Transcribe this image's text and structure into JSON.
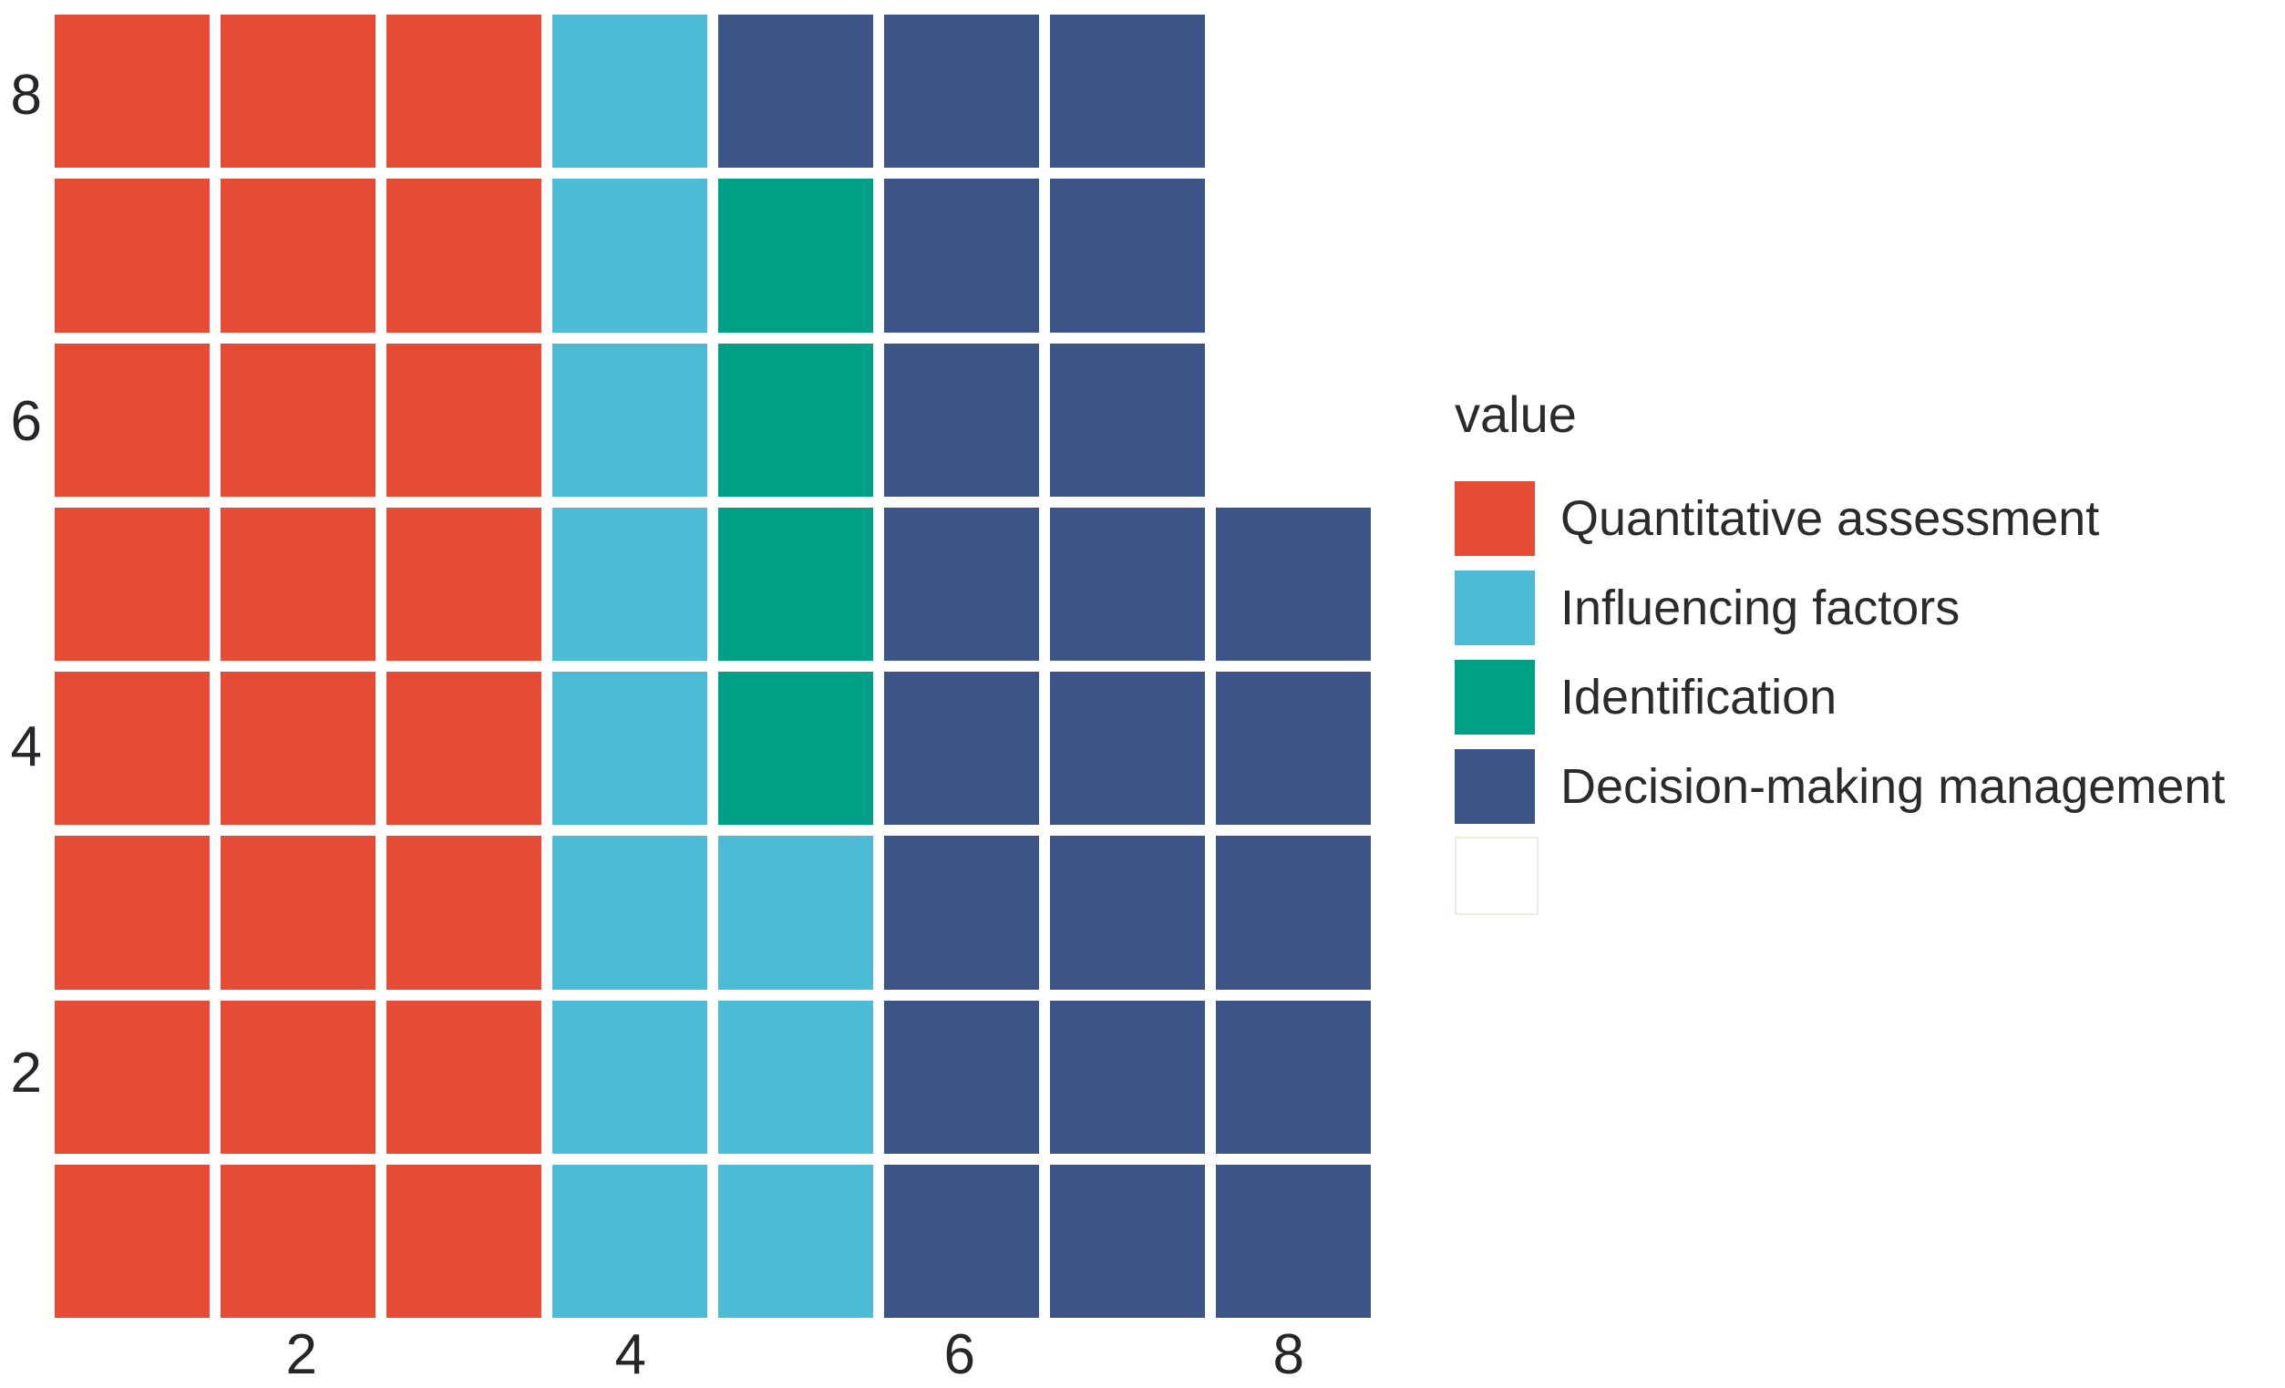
{
  "chart_data": {
    "type": "heatmap",
    "subtype": "waffle-grid",
    "grid_on": false,
    "legend_position": "right",
    "x_axis": {
      "range": [
        1,
        8
      ],
      "ticks": [
        {
          "label": "2",
          "col": 2
        },
        {
          "label": "4",
          "col": 4
        },
        {
          "label": "6",
          "col": 6
        },
        {
          "label": "8",
          "col": 8
        }
      ]
    },
    "y_axis": {
      "range": [
        1,
        8
      ],
      "ticks": [
        {
          "label": "8",
          "grid_row": 1
        },
        {
          "label": "6",
          "grid_row": 3
        },
        {
          "label": "4",
          "grid_row": 5
        },
        {
          "label": "2",
          "grid_row": 7
        }
      ]
    },
    "legend": {
      "title": "value",
      "items": [
        {
          "key": "QA",
          "label": "Quantitative assessment",
          "color": "#E64B35"
        },
        {
          "key": "IF",
          "label": "Influencing factors",
          "color": "#4DBBD5"
        },
        {
          "key": "ID",
          "label": "Identification",
          "color": "#00A087"
        },
        {
          "key": "DM",
          "label": "Decision-making management",
          "color": "#3C5488"
        },
        {
          "key": "NA",
          "label": "",
          "color": "#FFFFFF"
        }
      ]
    },
    "grid": {
      "rows": [
        {
          "y": 8,
          "cells": [
            "QA",
            "QA",
            "QA",
            "IF",
            "DM",
            "DM",
            "DM",
            null
          ]
        },
        {
          "y": 7,
          "cells": [
            "QA",
            "QA",
            "QA",
            "IF",
            "ID",
            "DM",
            "DM",
            null
          ]
        },
        {
          "y": 6,
          "cells": [
            "QA",
            "QA",
            "QA",
            "IF",
            "ID",
            "DM",
            "DM",
            null
          ]
        },
        {
          "y": 5,
          "cells": [
            "QA",
            "QA",
            "QA",
            "IF",
            "ID",
            "DM",
            "DM",
            "DM"
          ]
        },
        {
          "y": 4,
          "cells": [
            "QA",
            "QA",
            "QA",
            "IF",
            "ID",
            "DM",
            "DM",
            "DM"
          ]
        },
        {
          "y": 3,
          "cells": [
            "QA",
            "QA",
            "QA",
            "IF",
            "IF",
            "DM",
            "DM",
            "DM"
          ]
        },
        {
          "y": 2,
          "cells": [
            "QA",
            "QA",
            "QA",
            "IF",
            "IF",
            "DM",
            "DM",
            "DM"
          ]
        },
        {
          "y": 1,
          "cells": [
            "QA",
            "QA",
            "QA",
            "IF",
            "IF",
            "DM",
            "DM",
            "DM"
          ]
        }
      ]
    },
    "category_counts": {
      "Quantitative assessment": 24,
      "Influencing factors": 11,
      "Identification": 4,
      "Decision-making management": 22
    },
    "total_cells": 61,
    "text_color": "#262626",
    "background_color": "#FFFFFF"
  }
}
